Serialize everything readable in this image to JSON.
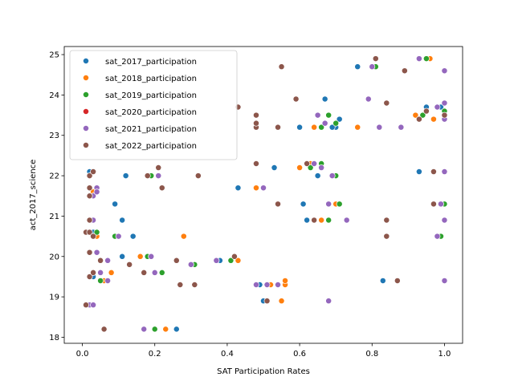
{
  "chart_data": {
    "type": "scatter",
    "title": "",
    "xlabel": "SAT Participation Rates",
    "ylabel": "act_2017_science",
    "xlim": [
      -0.05,
      1.05
    ],
    "ylim": [
      17.85,
      25.2
    ],
    "xticks": [
      0.0,
      0.2,
      0.4,
      0.6,
      0.8,
      1.0
    ],
    "xtick_labels": [
      "0.0",
      "0.2",
      "0.4",
      "0.6",
      "0.8",
      "1.0"
    ],
    "yticks": [
      18,
      19,
      20,
      21,
      22,
      23,
      24,
      25
    ],
    "ytick_labels": [
      "18",
      "19",
      "20",
      "21",
      "22",
      "23",
      "24",
      "25"
    ],
    "grid": false,
    "legend_position": "top-left",
    "series": [
      {
        "name": "sat_2017_participation",
        "color": "#1f77b4",
        "points": [
          [
            0.05,
            19.4
          ],
          [
            0.02,
            22.1
          ],
          [
            0.12,
            22.0
          ],
          [
            0.09,
            21.3
          ],
          [
            0.11,
            20.9
          ],
          [
            0.14,
            20.5
          ],
          [
            0.11,
            20.0
          ],
          [
            0.03,
            20.6
          ],
          [
            0.05,
            19.6
          ],
          [
            0.02,
            18.8
          ],
          [
            0.26,
            18.2
          ],
          [
            0.38,
            19.9
          ],
          [
            0.43,
            21.7
          ],
          [
            0.53,
            22.2
          ],
          [
            0.6,
            23.2
          ],
          [
            0.61,
            21.3
          ],
          [
            0.62,
            20.9
          ],
          [
            0.65,
            22.0
          ],
          [
            0.67,
            23.9
          ],
          [
            0.7,
            23.2
          ],
          [
            0.71,
            23.4
          ],
          [
            0.76,
            24.7
          ],
          [
            0.83,
            19.4
          ],
          [
            0.93,
            22.1
          ],
          [
            0.95,
            23.7
          ],
          [
            0.96,
            24.9
          ],
          [
            1.0,
            23.4
          ],
          [
            1.0,
            23.5
          ],
          [
            0.5,
            18.9
          ],
          [
            0.49,
            19.3
          ],
          [
            0.03,
            20.5
          ],
          [
            0.04,
            21.6
          ],
          [
            0.03,
            19.5
          ],
          [
            0.69,
            23.2
          ],
          [
            0.99,
            23.7
          ]
        ]
      },
      {
        "name": "sat_2018_participation",
        "color": "#ff7f0e",
        "points": [
          [
            0.06,
            19.4
          ],
          [
            0.08,
            19.6
          ],
          [
            0.16,
            20.0
          ],
          [
            0.23,
            18.2
          ],
          [
            0.28,
            20.5
          ],
          [
            0.43,
            19.9
          ],
          [
            0.48,
            21.7
          ],
          [
            0.52,
            19.3
          ],
          [
            0.55,
            18.9
          ],
          [
            0.56,
            19.3
          ],
          [
            0.56,
            19.4
          ],
          [
            0.6,
            22.2
          ],
          [
            0.63,
            22.3
          ],
          [
            0.64,
            23.2
          ],
          [
            0.66,
            20.9
          ],
          [
            0.7,
            21.3
          ],
          [
            0.76,
            23.2
          ],
          [
            0.92,
            23.5
          ],
          [
            0.96,
            24.9
          ],
          [
            0.97,
            23.4
          ],
          [
            0.99,
            21.3
          ],
          [
            1.0,
            23.6
          ],
          [
            0.04,
            20.5
          ],
          [
            0.03,
            21.6
          ]
        ]
      },
      {
        "name": "sat_2019_participation",
        "color": "#2ca02c",
        "points": [
          [
            0.04,
            20.6
          ],
          [
            0.09,
            20.5
          ],
          [
            0.18,
            20.0
          ],
          [
            0.19,
            22.0
          ],
          [
            0.2,
            18.2
          ],
          [
            0.22,
            19.6
          ],
          [
            0.31,
            19.8
          ],
          [
            0.41,
            19.9
          ],
          [
            0.54,
            19.3
          ],
          [
            0.63,
            22.2
          ],
          [
            0.66,
            23.2
          ],
          [
            0.66,
            22.3
          ],
          [
            0.68,
            20.9
          ],
          [
            0.68,
            23.5
          ],
          [
            0.7,
            22.0
          ],
          [
            0.7,
            23.3
          ],
          [
            0.71,
            21.3
          ],
          [
            0.81,
            24.7
          ],
          [
            0.94,
            23.5
          ],
          [
            0.95,
            24.9
          ],
          [
            0.99,
            20.5
          ],
          [
            1.0,
            21.3
          ],
          [
            1.0,
            23.6
          ],
          [
            0.05,
            19.4
          ]
        ]
      },
      {
        "name": "sat_2020_participation",
        "color": "#d62728",
        "points": []
      },
      {
        "name": "sat_2021_participation",
        "color": "#9467bd",
        "points": [
          [
            0.02,
            18.8
          ],
          [
            0.03,
            18.8
          ],
          [
            0.03,
            20.9
          ],
          [
            0.04,
            20.1
          ],
          [
            0.04,
            21.7
          ],
          [
            0.03,
            21.5
          ],
          [
            0.04,
            21.6
          ],
          [
            0.05,
            19.6
          ],
          [
            0.07,
            19.4
          ],
          [
            0.07,
            19.9
          ],
          [
            0.1,
            20.5
          ],
          [
            0.17,
            18.2
          ],
          [
            0.19,
            20.0
          ],
          [
            0.2,
            19.6
          ],
          [
            0.21,
            22.0
          ],
          [
            0.3,
            19.8
          ],
          [
            0.37,
            19.9
          ],
          [
            0.48,
            19.3
          ],
          [
            0.5,
            21.7
          ],
          [
            0.51,
            19.3
          ],
          [
            0.54,
            19.3
          ],
          [
            0.64,
            22.3
          ],
          [
            0.65,
            23.5
          ],
          [
            0.66,
            22.2
          ],
          [
            0.67,
            23.3
          ],
          [
            0.68,
            18.9
          ],
          [
            0.68,
            21.3
          ],
          [
            0.69,
            22.0
          ],
          [
            0.73,
            20.9
          ],
          [
            0.79,
            23.9
          ],
          [
            0.8,
            24.7
          ],
          [
            0.82,
            23.2
          ],
          [
            0.88,
            23.2
          ],
          [
            0.93,
            24.9
          ],
          [
            0.98,
            20.5
          ],
          [
            0.98,
            23.7
          ],
          [
            0.99,
            21.3
          ],
          [
            1.0,
            20.9
          ],
          [
            1.0,
            22.1
          ],
          [
            1.0,
            23.4
          ],
          [
            1.0,
            23.8
          ],
          [
            1.0,
            24.6
          ],
          [
            1.0,
            19.4
          ]
        ]
      },
      {
        "name": "sat_2022_participation",
        "color": "#8c564b",
        "points": [
          [
            0.01,
            18.8
          ],
          [
            0.01,
            20.6
          ],
          [
            0.02,
            19.5
          ],
          [
            0.02,
            20.1
          ],
          [
            0.02,
            20.6
          ],
          [
            0.02,
            20.9
          ],
          [
            0.02,
            21.5
          ],
          [
            0.02,
            21.7
          ],
          [
            0.02,
            22.0
          ],
          [
            0.03,
            22.1
          ],
          [
            0.03,
            19.6
          ],
          [
            0.03,
            20.5
          ],
          [
            0.05,
            19.9
          ],
          [
            0.06,
            18.2
          ],
          [
            0.13,
            19.8
          ],
          [
            0.17,
            19.6
          ],
          [
            0.18,
            22.0
          ],
          [
            0.21,
            22.2
          ],
          [
            0.22,
            21.7
          ],
          [
            0.26,
            19.9
          ],
          [
            0.27,
            19.3
          ],
          [
            0.31,
            19.3
          ],
          [
            0.32,
            22.0
          ],
          [
            0.42,
            20.0
          ],
          [
            0.43,
            23.7
          ],
          [
            0.48,
            23.2
          ],
          [
            0.48,
            23.3
          ],
          [
            0.48,
            23.5
          ],
          [
            0.48,
            22.3
          ],
          [
            0.51,
            18.9
          ],
          [
            0.54,
            21.3
          ],
          [
            0.54,
            23.2
          ],
          [
            0.55,
            24.7
          ],
          [
            0.59,
            23.9
          ],
          [
            0.62,
            22.3
          ],
          [
            0.64,
            20.9
          ],
          [
            0.81,
            24.9
          ],
          [
            0.84,
            23.8
          ],
          [
            0.84,
            20.9
          ],
          [
            0.84,
            20.5
          ],
          [
            0.87,
            19.4
          ],
          [
            0.89,
            24.6
          ],
          [
            0.93,
            23.4
          ],
          [
            0.95,
            23.6
          ],
          [
            0.97,
            22.1
          ],
          [
            0.97,
            21.3
          ],
          [
            1.0,
            23.5
          ]
        ]
      }
    ]
  }
}
